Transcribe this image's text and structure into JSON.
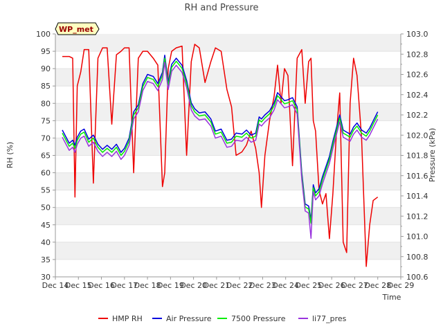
{
  "chart_data": {
    "type": "line",
    "title": "RH and Pressure",
    "badge": "WP_met",
    "xlabel": "Time",
    "ylabel_left": "RH (%)",
    "ylabel_right": "Pressure (kPa)",
    "ylim_left": [
      30,
      100
    ],
    "ylim_right": [
      100.6,
      103.0
    ],
    "x_ticks": [
      "Dec 14",
      "Dec 15",
      "Dec 16",
      "Dec 17",
      "Dec 18",
      "Dec 19",
      "Dec 20",
      "Dec 21",
      "Dec 22",
      "Dec 23",
      "Dec 24",
      "Dec 25",
      "Dec 26",
      "Dec 27",
      "Dec 28",
      "Dec 29"
    ],
    "y_ticks_left": [
      "30",
      "35",
      "40",
      "45",
      "50",
      "55",
      "60",
      "65",
      "70",
      "75",
      "80",
      "85",
      "90",
      "95",
      "100"
    ],
    "y_ticks_right": [
      "100.6",
      "100.8",
      "101.0",
      "101.2",
      "101.4",
      "101.6",
      "101.8",
      "102.0",
      "102.2",
      "102.4",
      "102.6",
      "102.8",
      "103.0"
    ],
    "grid": "horizontal bands",
    "legend_position": "bottom",
    "x": [
      14.3,
      14.6,
      14.75,
      14.85,
      14.95,
      15.1,
      15.25,
      15.45,
      15.65,
      15.85,
      16.05,
      16.25,
      16.45,
      16.65,
      16.85,
      17.0,
      17.2,
      17.4,
      17.6,
      17.8,
      18.0,
      18.25,
      18.45,
      18.65,
      18.75,
      18.9,
      19.05,
      19.25,
      19.5,
      19.7,
      19.9,
      20.05,
      20.25,
      20.5,
      20.75,
      20.95,
      21.2,
      21.45,
      21.65,
      21.85,
      22.1,
      22.3,
      22.5,
      22.7,
      22.85,
      22.95,
      23.1,
      23.3,
      23.5,
      23.65,
      23.8,
      23.95,
      24.1,
      24.3,
      24.5,
      24.7,
      24.85,
      25.0,
      25.1,
      25.2,
      25.3,
      25.45,
      25.6,
      25.75,
      25.9,
      26.05,
      26.2,
      26.35,
      26.5,
      26.65,
      26.8,
      26.95,
      27.1,
      27.3,
      27.5,
      27.65,
      27.8,
      28.0
    ],
    "series": [
      {
        "name": "HMP RH",
        "color": "#ee0000",
        "axis": "left",
        "values": [
          93.5,
          93.5,
          93.0,
          53.0,
          85.0,
          89.0,
          95.5,
          95.5,
          57.0,
          93.0,
          96.0,
          96.0,
          74.0,
          94.0,
          95.0,
          96.0,
          96.0,
          60.0,
          93.0,
          95.0,
          95.0,
          93.0,
          91.0,
          56.0,
          60.0,
          90.0,
          95.0,
          96.0,
          96.5,
          65.0,
          92.0,
          97.0,
          96.0,
          86.0,
          92.0,
          96.0,
          95.0,
          84.0,
          79.0,
          65.0,
          66.0,
          68.0,
          72.0,
          67.0,
          60.0,
          50.0,
          65.0,
          75.0,
          82.0,
          91.0,
          80.0,
          90.0,
          88.0,
          62.0,
          93.0,
          95.5,
          80.0,
          92.0,
          93.0,
          75.0,
          72.0,
          55.0,
          51.0,
          54.0,
          41.0,
          54.0,
          71.0,
          83.0,
          40.0,
          37.0,
          80.0,
          93.0,
          88.0,
          70.0,
          33.0,
          45.0,
          52.0,
          53.0
        ]
      },
      {
        "name": "Air Pressure",
        "color": "#0000dd",
        "axis": "right",
        "values": [
          102.05,
          101.92,
          101.95,
          101.9,
          101.98,
          102.04,
          102.06,
          101.96,
          102.0,
          101.91,
          101.86,
          101.9,
          101.86,
          101.91,
          101.83,
          101.87,
          101.97,
          102.23,
          102.3,
          102.51,
          102.6,
          102.58,
          102.51,
          102.62,
          102.79,
          102.52,
          102.7,
          102.76,
          102.69,
          102.54,
          102.32,
          102.26,
          102.22,
          102.23,
          102.16,
          102.04,
          102.06,
          101.95,
          101.96,
          102.02,
          102.01,
          102.05,
          102.0,
          102.02,
          102.18,
          102.16,
          102.2,
          102.24,
          102.32,
          102.42,
          102.38,
          102.34,
          102.35,
          102.37,
          102.28,
          101.63,
          101.32,
          101.3,
          101.16,
          101.51,
          101.43,
          101.47,
          101.59,
          101.69,
          101.79,
          101.94,
          102.07,
          102.2,
          102.05,
          102.03,
          102.01,
          102.08,
          102.12,
          102.05,
          102.02,
          102.07,
          102.14,
          102.23
        ]
      },
      {
        "name": "7500 Pressure",
        "color": "#00ee00",
        "axis": "right",
        "values": [
          102.02,
          101.89,
          101.92,
          101.87,
          101.95,
          102.01,
          102.03,
          101.93,
          101.97,
          101.88,
          101.83,
          101.87,
          101.83,
          101.88,
          101.8,
          101.84,
          101.94,
          102.2,
          102.27,
          102.48,
          102.57,
          102.55,
          102.48,
          102.59,
          102.76,
          102.49,
          102.67,
          102.73,
          102.66,
          102.51,
          102.29,
          102.23,
          102.19,
          102.2,
          102.13,
          102.01,
          102.03,
          101.92,
          101.93,
          101.99,
          101.98,
          102.02,
          101.97,
          101.99,
          102.15,
          102.13,
          102.17,
          102.21,
          102.29,
          102.39,
          102.35,
          102.31,
          102.32,
          102.34,
          102.25,
          101.6,
          101.29,
          101.27,
          101.13,
          101.48,
          101.4,
          101.44,
          101.56,
          101.66,
          101.76,
          101.91,
          102.04,
          102.17,
          102.02,
          102.0,
          101.98,
          102.05,
          102.09,
          102.02,
          101.99,
          102.04,
          102.11,
          102.2
        ]
      },
      {
        "name": "li77_pres",
        "color": "#9933dd",
        "axis": "right",
        "values": [
          101.98,
          101.85,
          101.88,
          101.83,
          101.91,
          101.97,
          101.99,
          101.89,
          101.93,
          101.84,
          101.79,
          101.83,
          101.79,
          101.84,
          101.76,
          101.8,
          101.9,
          102.16,
          102.23,
          102.44,
          102.53,
          102.51,
          102.44,
          102.55,
          102.72,
          102.45,
          102.63,
          102.69,
          102.62,
          102.47,
          102.25,
          102.19,
          102.15,
          102.16,
          102.09,
          101.97,
          101.99,
          101.88,
          101.89,
          101.95,
          101.94,
          101.98,
          101.93,
          101.95,
          102.11,
          102.09,
          102.13,
          102.17,
          102.25,
          102.35,
          102.31,
          102.27,
          102.28,
          102.3,
          102.21,
          101.56,
          101.25,
          101.23,
          100.98,
          101.44,
          101.36,
          101.4,
          101.52,
          101.62,
          101.72,
          101.87,
          102.0,
          102.13,
          101.98,
          101.96,
          101.94,
          102.01,
          102.05,
          101.98,
          101.95,
          102.0,
          102.07,
          102.16
        ]
      }
    ]
  }
}
